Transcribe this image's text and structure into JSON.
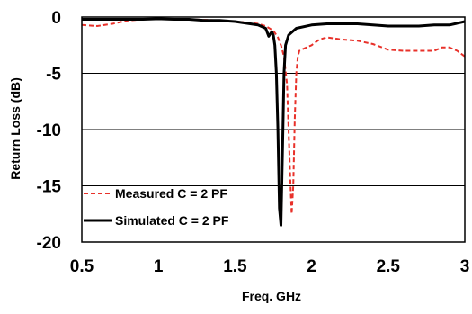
{
  "chart_data": {
    "type": "line",
    "xlabel": "Freq. GHz",
    "ylabel": "Return Loss (dB)",
    "xlim": [
      0.5,
      3
    ],
    "ylim": [
      -20,
      0
    ],
    "xticks": [
      0.5,
      1,
      1.5,
      2,
      2.5,
      3
    ],
    "xtick_labels": [
      "0.5",
      "1",
      "1.5",
      "2",
      "2.5",
      "3"
    ],
    "yticks": [
      0,
      -5,
      -10,
      -15,
      -20
    ],
    "ytick_labels": [
      "0",
      "-5",
      "-10",
      "-15",
      "-20"
    ],
    "grid": "horizontal",
    "legend_position": "bottom-left",
    "series": [
      {
        "name": "Measured C = 2 PF",
        "color": "#e8312a",
        "style": "dashed",
        "x": [
          0.5,
          0.6,
          0.7,
          0.8,
          0.9,
          1.0,
          1.1,
          1.2,
          1.3,
          1.4,
          1.5,
          1.6,
          1.65,
          1.7,
          1.75,
          1.78,
          1.8,
          1.82,
          1.84,
          1.85,
          1.86,
          1.87,
          1.88,
          1.89,
          1.9,
          1.91,
          1.92,
          1.95,
          2.0,
          2.05,
          2.1,
          2.2,
          2.3,
          2.4,
          2.5,
          2.6,
          2.7,
          2.8,
          2.85,
          2.9,
          2.95,
          3.0
        ],
        "y": [
          -0.7,
          -0.8,
          -0.6,
          -0.3,
          -0.2,
          -0.2,
          -0.2,
          -0.2,
          -0.25,
          -0.3,
          -0.4,
          -0.5,
          -0.6,
          -0.8,
          -1.2,
          -1.8,
          -2.5,
          -3.5,
          -6.0,
          -10.0,
          -14.0,
          -17.5,
          -15.0,
          -9.0,
          -5.0,
          -3.5,
          -3.0,
          -2.8,
          -2.5,
          -2.0,
          -1.8,
          -2.0,
          -2.1,
          -2.4,
          -2.9,
          -3.0,
          -3.0,
          -3.0,
          -2.7,
          -2.7,
          -3.0,
          -3.5
        ]
      },
      {
        "name": "Simulated C = 2 PF",
        "color": "#000000",
        "style": "solid",
        "x": [
          0.5,
          0.6,
          0.7,
          0.8,
          0.9,
          1.0,
          1.1,
          1.2,
          1.3,
          1.4,
          1.5,
          1.6,
          1.65,
          1.7,
          1.72,
          1.74,
          1.75,
          1.76,
          1.77,
          1.78,
          1.79,
          1.8,
          1.81,
          1.82,
          1.83,
          1.85,
          1.9,
          2.0,
          2.1,
          2.2,
          2.3,
          2.4,
          2.5,
          2.6,
          2.7,
          2.8,
          2.9,
          3.0
        ],
        "y": [
          -0.2,
          -0.2,
          -0.2,
          -0.2,
          -0.2,
          -0.15,
          -0.2,
          -0.2,
          -0.3,
          -0.3,
          -0.4,
          -0.6,
          -0.7,
          -1.0,
          -1.7,
          -1.3,
          -1.6,
          -2.5,
          -5.0,
          -10.0,
          -17.0,
          -18.5,
          -12.0,
          -5.0,
          -2.5,
          -1.6,
          -1.0,
          -0.7,
          -0.6,
          -0.6,
          -0.6,
          -0.7,
          -0.8,
          -0.8,
          -0.8,
          -0.7,
          -0.7,
          -0.4
        ]
      }
    ]
  }
}
